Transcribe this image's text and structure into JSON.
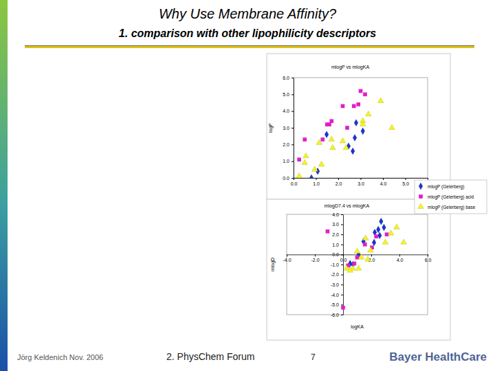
{
  "slide": {
    "title": "Why Use Membrane Affinity?",
    "subtitle": "1. comparison with other lipophilicity descriptors",
    "footer": {
      "author": "Jörg Keldenich Nov. 2006",
      "event": "2. PhysChem Forum",
      "page": 7,
      "logo": "Bayer HealthCare"
    }
  },
  "chart_data": [
    {
      "type": "scatter",
      "title": "mlogP vs mlogKA",
      "y_label": "logP",
      "xlim": [
        0,
        6
      ],
      "ylim": [
        0,
        6
      ],
      "xticks": [
        {
          "value": 0,
          "label": "0.0"
        },
        {
          "value": 1,
          "label": "1.0"
        },
        {
          "value": 2,
          "label": "2.0"
        },
        {
          "value": 3,
          "label": "3.0"
        },
        {
          "value": 4,
          "label": "4.0"
        },
        {
          "value": 5,
          "label": "5.0"
        },
        {
          "value": 6,
          "label": "6.0"
        }
      ],
      "yticks": [
        {
          "value": 0,
          "label": "0.0"
        },
        {
          "value": 1,
          "label": "1.0"
        },
        {
          "value": 2,
          "label": "2.0"
        },
        {
          "value": 3,
          "label": "3.0"
        },
        {
          "value": 4,
          "label": "4.0"
        },
        {
          "value": 5,
          "label": "5.0"
        },
        {
          "value": 6,
          "label": "6.0"
        }
      ],
      "legend": "bottom-right",
      "series": [
        {
          "name": "mlogP (Gelerberg)",
          "color": "#1f35c8",
          "marker": "diamond",
          "x": [
            0.8,
            1.08,
            1.48,
            2.8,
            3.1,
            2.74,
            2.46,
            2.65
          ],
          "values": [
            0.0,
            0.4,
            2.6,
            3.3,
            2.8,
            2.4,
            1.9,
            1.6
          ]
        },
        {
          "name": "mlogP (Gelerberg) acid",
          "color": "#e020c8",
          "marker": "square",
          "x": [
            3.0,
            3.2,
            2.2,
            2.7,
            2.9,
            1.7,
            1.5,
            1.6,
            2.4,
            0.5,
            1.3,
            0.25
          ],
          "values": [
            5.2,
            5.0,
            4.3,
            4.3,
            4.4,
            3.4,
            3.2,
            3.2,
            3.0,
            2.3,
            2.3,
            1.1
          ]
        },
        {
          "name": "mlogP (Gelerberg) base",
          "color": "#f2f22e",
          "marker": "triangle",
          "x": [
            3.9,
            3.35,
            3.1,
            3.1,
            4.4,
            1.7,
            1.15,
            2.2,
            1.75,
            2.35,
            0.55,
            0.5,
            1.25,
            0.95,
            0.25
          ],
          "values": [
            4.6,
            3.8,
            3.4,
            3.2,
            3.0,
            2.3,
            2.1,
            2.2,
            1.8,
            1.8,
            1.3,
            0.9,
            0.8,
            0.5,
            0.1
          ]
        }
      ]
    },
    {
      "type": "scatter",
      "title": "mlogD7.4 vs mlogKA",
      "x_label": "logKA",
      "y_label": "mlogD",
      "xlim": [
        -4,
        6
      ],
      "ylim": [
        -6,
        4
      ],
      "xticks": [
        {
          "value": -4,
          "label": "-4.0"
        },
        {
          "value": -2,
          "label": "-2.0"
        },
        {
          "value": 0,
          "label": "0.0"
        },
        {
          "value": 2,
          "label": "2.0"
        },
        {
          "value": 4,
          "label": "4.0"
        },
        {
          "value": 6,
          "label": "6.0"
        }
      ],
      "yticks": [
        {
          "value": -6,
          "label": "-6.0"
        },
        {
          "value": -5,
          "label": "-5.0"
        },
        {
          "value": -4,
          "label": "-4.0"
        },
        {
          "value": -3,
          "label": "-3.0"
        },
        {
          "value": -2,
          "label": "-2.0"
        },
        {
          "value": -1,
          "label": "-1.0"
        },
        {
          "value": 0,
          "label": "0.0"
        },
        {
          "value": 1,
          "label": "1.0"
        },
        {
          "value": 2,
          "label": "2.0"
        },
        {
          "value": 3,
          "label": "3.0"
        },
        {
          "value": 4,
          "label": "4.0"
        }
      ],
      "series": [
        {
          "color": "#1f35c8",
          "marker": "diamond",
          "x": [
            2.7,
            2.9,
            2.5,
            2.25,
            2.6,
            1.45,
            2.2,
            1.1,
            0.5,
            0.7
          ],
          "values": [
            3.3,
            2.7,
            2.5,
            2.2,
            1.9,
            1.3,
            1.2,
            0.0,
            -0.9,
            -1.0
          ]
        },
        {
          "color": "#e020c8",
          "marker": "square",
          "x": [
            -1.1,
            0.0,
            3.1,
            2.35,
            1.55,
            1.0,
            0.8,
            0.35,
            2.05
          ],
          "values": [
            2.3,
            -5.3,
            2.0,
            1.8,
            1.0,
            -0.3,
            -0.9,
            -1.1,
            0.7
          ]
        },
        {
          "color": "#f2f22e",
          "marker": "triangle",
          "x": [
            3.8,
            4.3,
            3.0,
            3.4,
            1.6,
            1.95,
            1.0,
            1.3,
            1.75,
            0.25,
            0.7,
            1.1,
            0.5
          ],
          "values": [
            2.7,
            1.2,
            1.2,
            2.1,
            1.6,
            0.4,
            0.3,
            -0.3,
            -0.5,
            -1.4,
            -1.4,
            -1.4,
            -1.6
          ]
        }
      ]
    }
  ]
}
